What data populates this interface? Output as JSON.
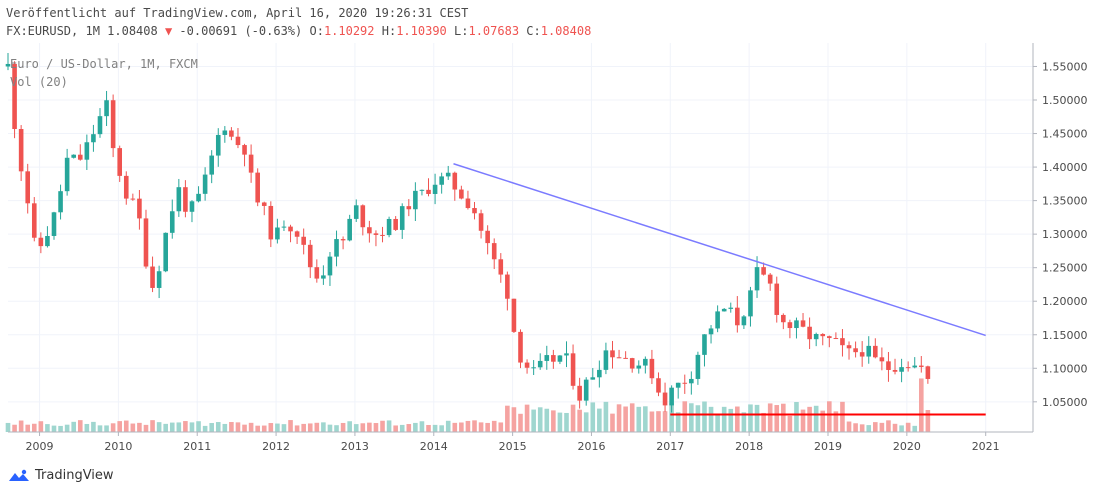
{
  "header": {
    "published_line": "Veröffentlicht auf TradingView.com, April 16, 2020 19:26:31 CEST",
    "symbol_info": "FX:EURUSD, 1M 1.08408",
    "change_arrow": "▼",
    "change_text": "-0.00691 (-0.63%)",
    "o_label": "O:",
    "o_value": "1.10292",
    "h_label": "H:",
    "h_value": "1.10390",
    "l_label": "L:",
    "l_value": "1.07683",
    "c_label": "C:",
    "c_value": "1.08408"
  },
  "pane": {
    "symbol_title": "Euro / US-Dollar, 1M, FXCM",
    "volume_label": "Vol (20)"
  },
  "footer": {
    "brand": "TradingView"
  },
  "colors": {
    "up": "#26a69a",
    "down": "#ef5350",
    "vol_up": "#9fd6cf",
    "vol_down": "#f5a3a1",
    "trendline": "#7b7bff",
    "support": "#ff0000",
    "grid": "#f0f3fa",
    "axis_text": "#4a4a4a"
  },
  "chart_data": {
    "type": "candlestick",
    "y_axis_side": "right",
    "y_ticks": [
      "1.55000",
      "1.50000",
      "1.45000",
      "1.40000",
      "1.35000",
      "1.30000",
      "1.25000",
      "1.20000",
      "1.15000",
      "1.10000",
      "1.05000"
    ],
    "y_tick_values": [
      1.55,
      1.5,
      1.45,
      1.4,
      1.35,
      1.3,
      1.25,
      1.2,
      1.15,
      1.1,
      1.05
    ],
    "x_ticks": [
      "2009",
      "2010",
      "2011",
      "2012",
      "2013",
      "2014",
      "2015",
      "2016",
      "2017",
      "2018",
      "2019",
      "2020",
      "2021"
    ],
    "x_tick_values": [
      2009,
      2010,
      2011,
      2012,
      2013,
      2014,
      2015,
      2016,
      2017,
      2018,
      2019,
      2020,
      2021
    ],
    "ylim": [
      1.005,
      1.585
    ],
    "xlim": [
      2008.6,
      2021.6
    ],
    "grid": true,
    "trendline": {
      "start": [
        2014.25,
        1.405
      ],
      "end": [
        2021.0,
        1.149
      ]
    },
    "support_line": {
      "y": 1.031,
      "x_start": 2017.0,
      "x_end": 2021.0
    },
    "anchor_points": [
      [
        2008.6,
        1.55
      ],
      [
        2008.72,
        1.43
      ],
      [
        2008.85,
        1.35
      ],
      [
        2008.95,
        1.27
      ],
      [
        2009.05,
        1.29
      ],
      [
        2009.2,
        1.33
      ],
      [
        2009.35,
        1.41
      ],
      [
        2009.5,
        1.41
      ],
      [
        2009.6,
        1.43
      ],
      [
        2009.75,
        1.47
      ],
      [
        2009.85,
        1.49
      ],
      [
        2009.92,
        1.43
      ],
      [
        2010.1,
        1.36
      ],
      [
        2010.25,
        1.33
      ],
      [
        2010.4,
        1.23
      ],
      [
        2010.45,
        1.22
      ],
      [
        2010.6,
        1.3
      ],
      [
        2010.75,
        1.37
      ],
      [
        2010.9,
        1.33
      ],
      [
        2011.05,
        1.36
      ],
      [
        2011.2,
        1.42
      ],
      [
        2011.33,
        1.47
      ],
      [
        2011.45,
        1.44
      ],
      [
        2011.6,
        1.43
      ],
      [
        2011.72,
        1.36
      ],
      [
        2011.85,
        1.33
      ],
      [
        2011.98,
        1.29
      ],
      [
        2012.1,
        1.32
      ],
      [
        2012.25,
        1.31
      ],
      [
        2012.4,
        1.26
      ],
      [
        2012.55,
        1.23
      ],
      [
        2012.7,
        1.28
      ],
      [
        2012.85,
        1.29
      ],
      [
        2013.0,
        1.34
      ],
      [
        2013.1,
        1.32
      ],
      [
        2013.25,
        1.3
      ],
      [
        2013.4,
        1.31
      ],
      [
        2013.55,
        1.32
      ],
      [
        2013.7,
        1.35
      ],
      [
        2013.85,
        1.36
      ],
      [
        2014.0,
        1.38
      ],
      [
        2014.2,
        1.38
      ],
      [
        2014.35,
        1.36
      ],
      [
        2014.5,
        1.34
      ],
      [
        2014.65,
        1.29
      ],
      [
        2014.8,
        1.25
      ],
      [
        2014.95,
        1.21
      ],
      [
        2015.05,
        1.13
      ],
      [
        2015.25,
        1.09
      ],
      [
        2015.45,
        1.11
      ],
      [
        2015.65,
        1.12
      ],
      [
        2015.85,
        1.06
      ],
      [
        2016.0,
        1.09
      ],
      [
        2016.2,
        1.13
      ],
      [
        2016.35,
        1.12
      ],
      [
        2016.55,
        1.11
      ],
      [
        2016.75,
        1.1
      ],
      [
        2016.9,
        1.05
      ],
      [
        2017.05,
        1.07
      ],
      [
        2017.25,
        1.09
      ],
      [
        2017.4,
        1.14
      ],
      [
        2017.55,
        1.17
      ],
      [
        2017.7,
        1.19
      ],
      [
        2017.85,
        1.17
      ],
      [
        2018.0,
        1.2
      ],
      [
        2018.1,
        1.24
      ],
      [
        2018.25,
        1.23
      ],
      [
        2018.4,
        1.17
      ],
      [
        2018.6,
        1.16
      ],
      [
        2018.75,
        1.15
      ],
      [
        2018.9,
        1.14
      ],
      [
        2019.05,
        1.14
      ],
      [
        2019.25,
        1.12
      ],
      [
        2019.45,
        1.13
      ],
      [
        2019.6,
        1.11
      ],
      [
        2019.75,
        1.1
      ],
      [
        2019.9,
        1.11
      ],
      [
        2020.0,
        1.11
      ],
      [
        2020.15,
        1.1
      ],
      [
        2020.25,
        1.1
      ],
      [
        2020.3,
        1.084
      ]
    ]
  }
}
